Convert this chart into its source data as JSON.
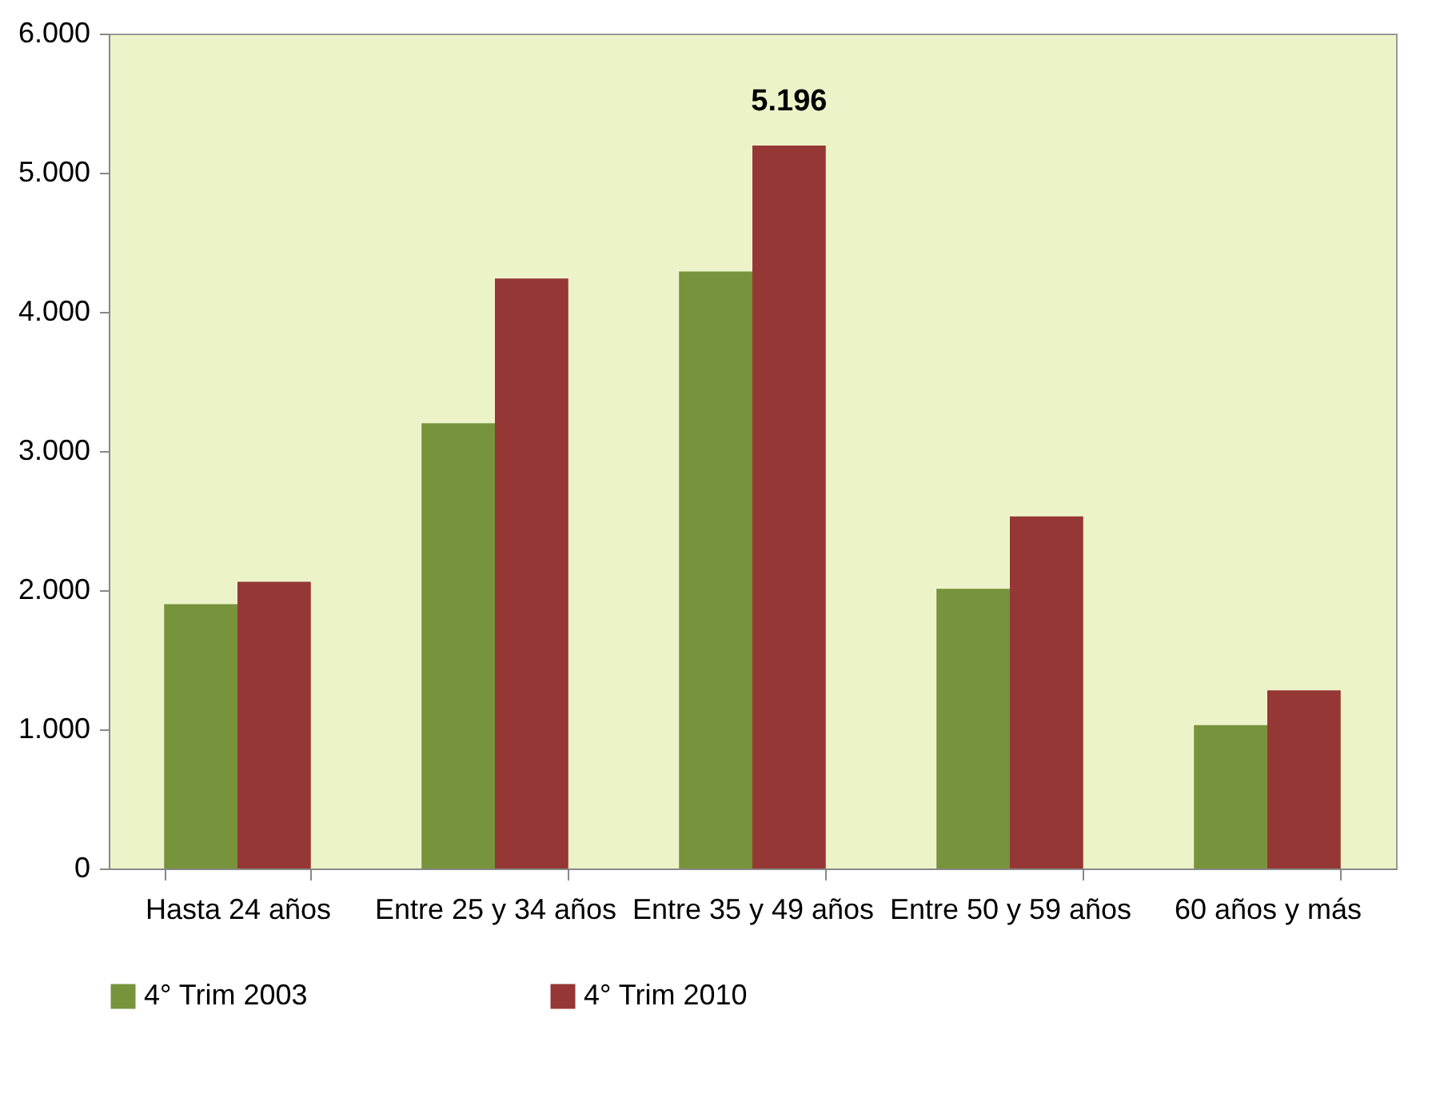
{
  "chart_data": {
    "type": "bar",
    "categories": [
      "Hasta 24 años",
      "Entre 25 y 34 años",
      "Entre 35 y 49 años",
      "Entre 50 y 59 años",
      "60 años y más"
    ],
    "series": [
      {
        "name": "4° Trim 2003",
        "color": "#77933c",
        "values": [
          1900,
          3200,
          4290,
          2010,
          1030
        ]
      },
      {
        "name": "4° Trim 2010",
        "color": "#953735",
        "values": [
          2060,
          4240,
          5196,
          2530,
          1280
        ],
        "value_labels": [
          null,
          null,
          "5.196",
          null,
          null
        ]
      }
    ],
    "ylim": [
      0,
      6000
    ],
    "yticks": [
      {
        "value": 0,
        "label": "0"
      },
      {
        "value": 1000,
        "label": "1.000"
      },
      {
        "value": 2000,
        "label": "2.000"
      },
      {
        "value": 3000,
        "label": "3.000"
      },
      {
        "value": 4000,
        "label": "4.000"
      },
      {
        "value": 5000,
        "label": "5.000"
      },
      {
        "value": 6000,
        "label": "6.000"
      }
    ],
    "grid": false,
    "legend": "bottom"
  }
}
